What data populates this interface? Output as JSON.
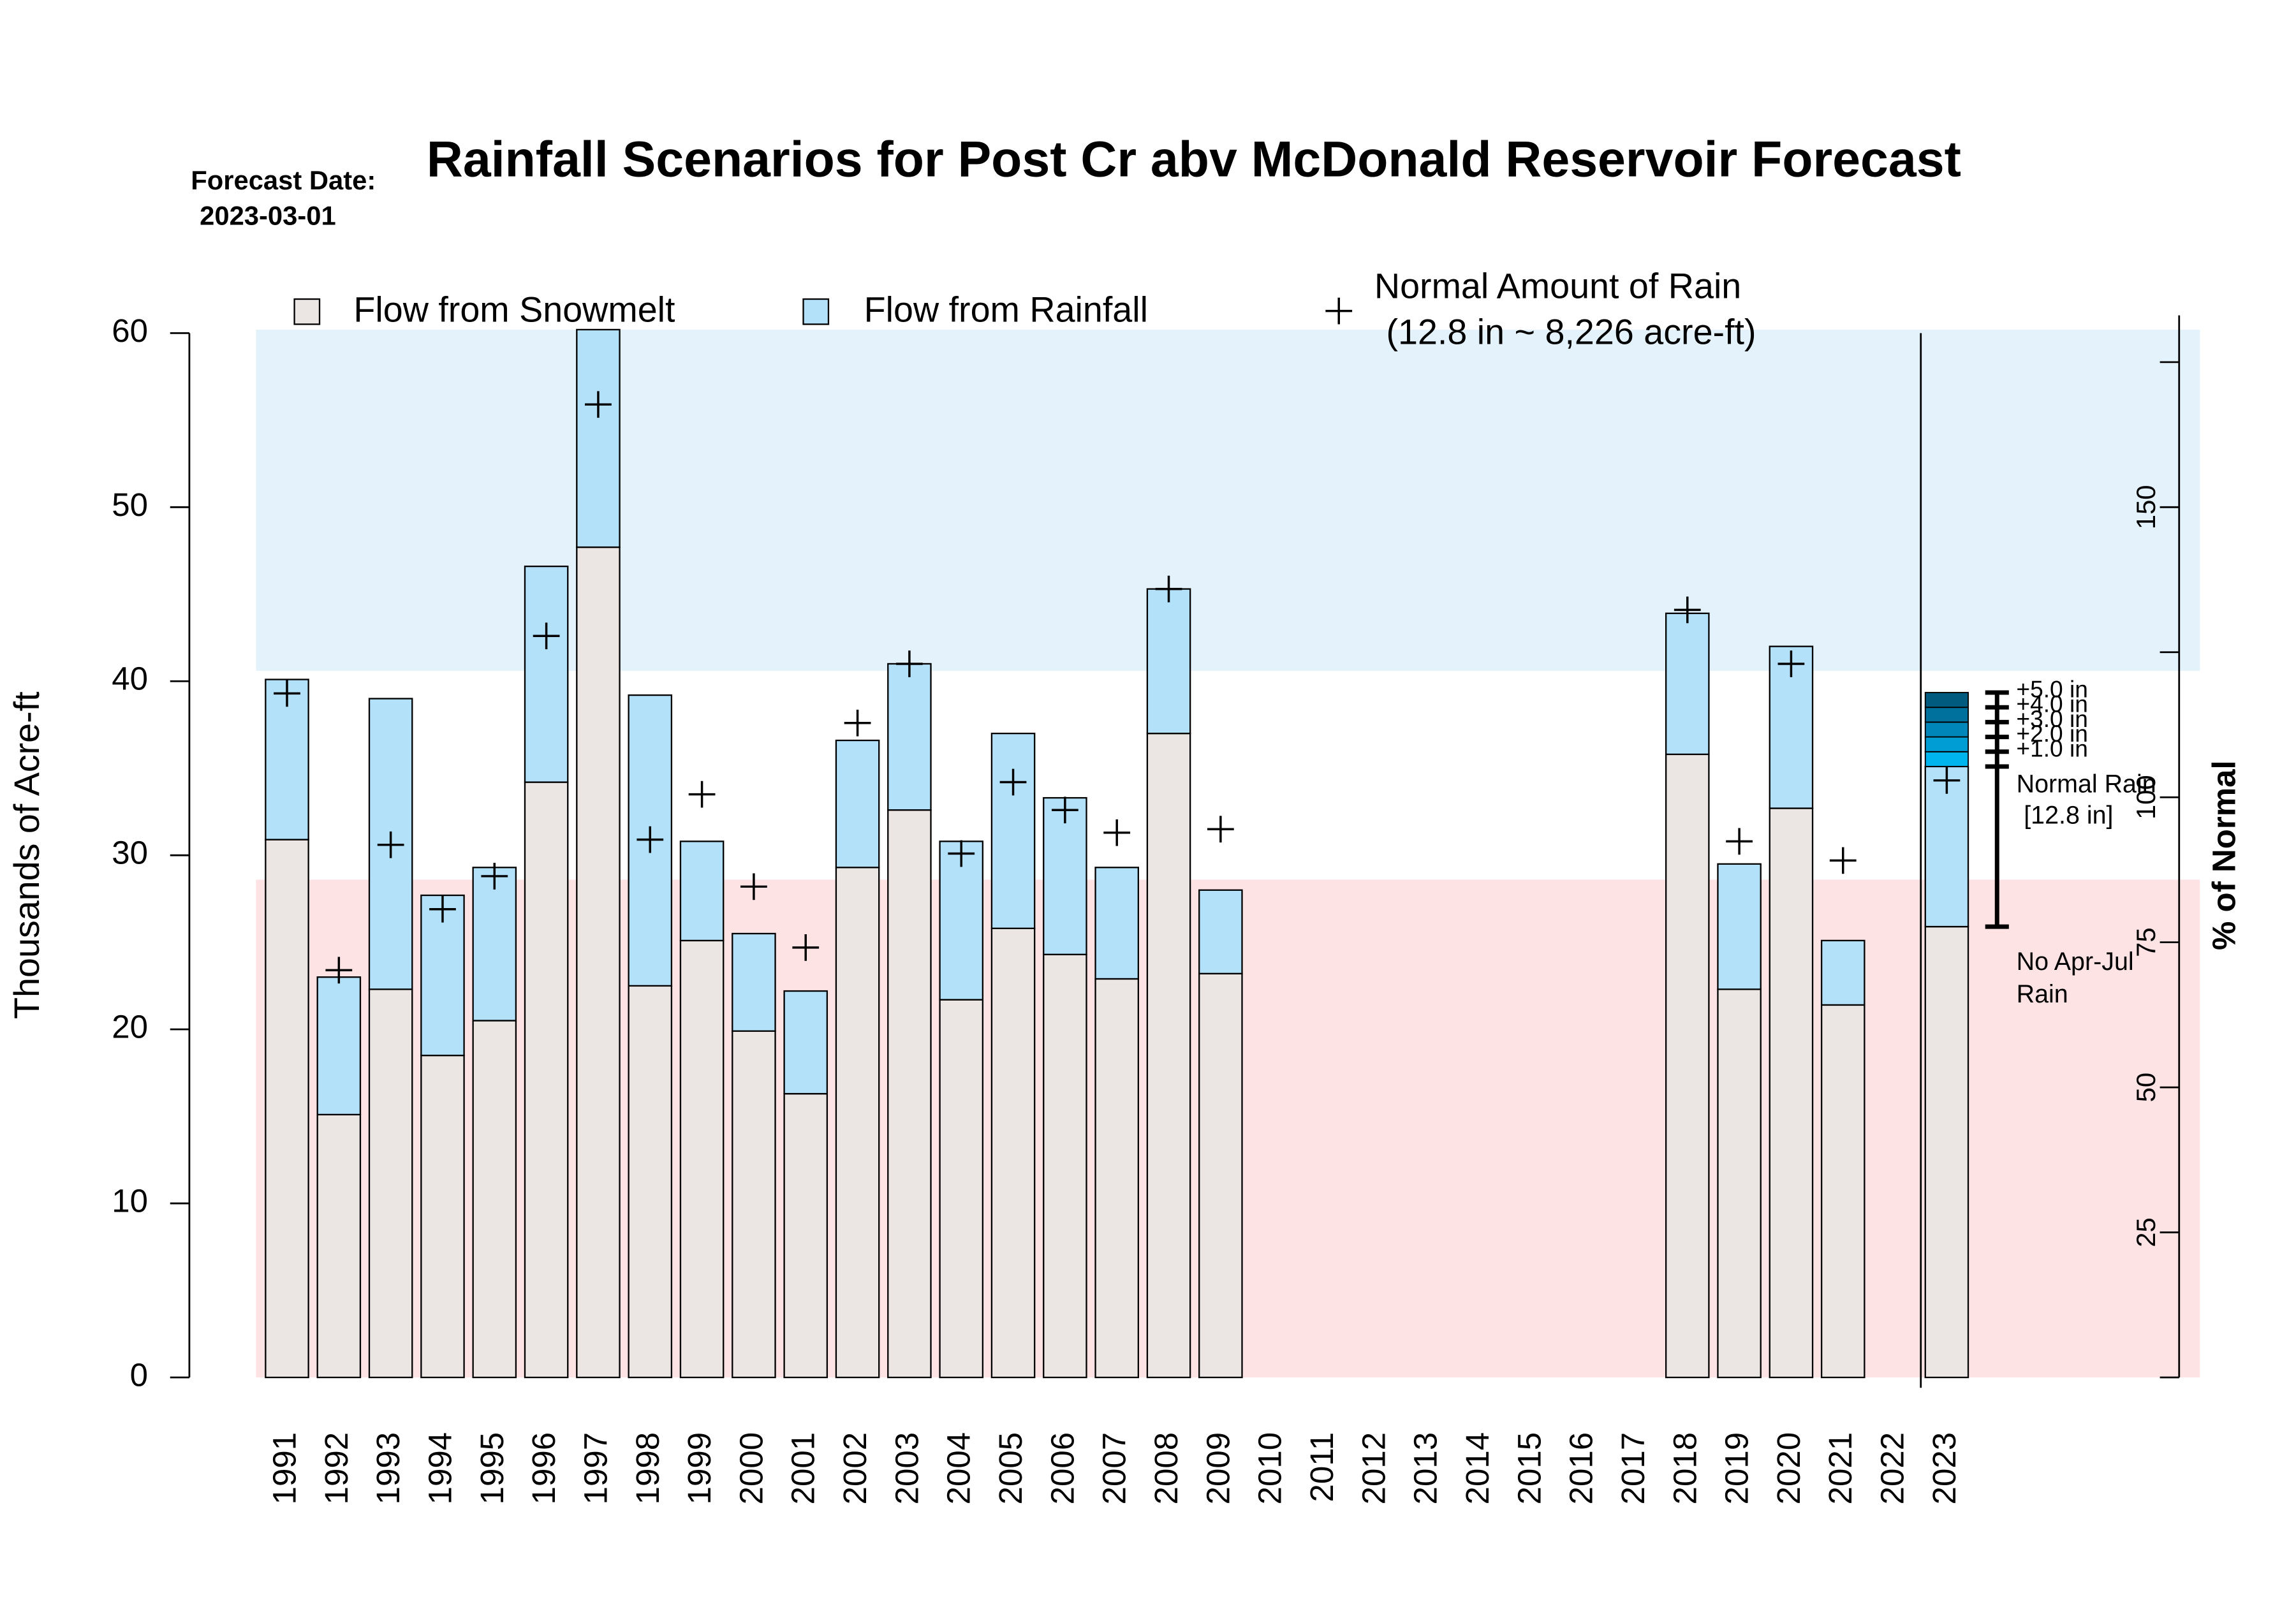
{
  "chart_data": {
    "type": "bar",
    "stacked": true,
    "title": "Rainfall Scenarios for Post Cr abv McDonald Reservoir Forecast",
    "forecast_label": "Forecast Date:",
    "forecast_date": "2023-03-01",
    "ylabel": "Thousands of Acre-ft",
    "y2label": "% of Normal",
    "categories": [
      "1991",
      "1992",
      "1993",
      "1994",
      "1995",
      "1996",
      "1997",
      "1998",
      "1999",
      "2000",
      "2001",
      "2002",
      "2003",
      "2004",
      "2005",
      "2006",
      "2007",
      "2008",
      "2009",
      "2010",
      "2011",
      "2012",
      "2013",
      "2014",
      "2015",
      "2016",
      "2017",
      "2018",
      "2019",
      "2020",
      "2021",
      "2022",
      "2023"
    ],
    "series": [
      {
        "name": "Flow from Snowmelt",
        "color": "#ebe6e4",
        "values": [
          30.9,
          15.1,
          22.3,
          18.5,
          20.5,
          34.2,
          47.7,
          22.5,
          25.1,
          19.9,
          16.3,
          29.3,
          32.6,
          21.7,
          25.8,
          24.3,
          22.9,
          37.0,
          23.2,
          null,
          null,
          null,
          null,
          null,
          null,
          null,
          null,
          35.8,
          22.3,
          32.7,
          21.4,
          null,
          25.9
        ]
      },
      {
        "name": "Flow from Rainfall",
        "color": "#b3e1f9",
        "values": [
          9.2,
          7.9,
          16.7,
          9.2,
          8.8,
          12.4,
          12.5,
          16.7,
          5.7,
          5.6,
          5.9,
          7.3,
          8.4,
          9.1,
          11.2,
          9.0,
          6.4,
          8.3,
          4.8,
          null,
          null,
          null,
          null,
          null,
          null,
          null,
          null,
          8.1,
          7.2,
          9.3,
          3.7,
          null,
          9.2
        ]
      }
    ],
    "markers": {
      "name": "Normal Amount of Rain",
      "note": "(12.8 in ~ 8,226 acre-ft)",
      "values": [
        39.3,
        23.4,
        30.6,
        26.9,
        28.8,
        42.6,
        55.9,
        30.9,
        33.5,
        28.2,
        24.7,
        37.6,
        41.0,
        30.1,
        34.2,
        32.6,
        31.3,
        45.3,
        31.5,
        null,
        null,
        null,
        null,
        null,
        null,
        null,
        null,
        44.1,
        30.8,
        41.0,
        29.7,
        null,
        34.3
      ]
    },
    "scenarios": {
      "labels": [
        "+1.0 in",
        "+2.0 in",
        "+3.0 in",
        "+4.0 in",
        "+5.0 in"
      ],
      "values": [
        0.85,
        0.85,
        0.85,
        0.85,
        0.85
      ],
      "colors": [
        "#00b4ee",
        "#009cd4",
        "#0086b8",
        "#00709c",
        "#005b7e"
      ]
    },
    "normal_rain_label": "Normal Rain",
    "normal_rain_amount": "[12.8 in]",
    "no_rain_label": "No Apr-Jul",
    "no_rain_label2": "Rain",
    "bands": [
      {
        "from": 0,
        "to": 28.6,
        "color": "#fde3e4"
      },
      {
        "from": 40.6,
        "to": 60.2,
        "color": "#e4f2fc"
      }
    ],
    "ylim": [
      0,
      60
    ],
    "yticks": [
      0,
      10,
      20,
      30,
      40,
      50,
      60
    ],
    "y2lim": [
      0,
      180
    ],
    "y2ticks": [
      {
        "value": 0,
        "label": null
      },
      25,
      50,
      75,
      100,
      {
        "value": 125,
        "label": null
      },
      150,
      {
        "value": 175,
        "label": null
      }
    ]
  }
}
